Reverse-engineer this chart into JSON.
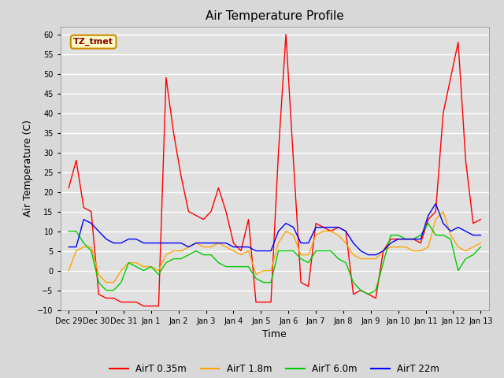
{
  "title": "Air Temperature Profile",
  "xlabel": "Time",
  "ylabel": "Air Temperature (C)",
  "ylim": [
    -10,
    62
  ],
  "yticks": [
    -10,
    -5,
    0,
    5,
    10,
    15,
    20,
    25,
    30,
    35,
    40,
    45,
    50,
    55,
    60
  ],
  "fig_facecolor": "#d8d8d8",
  "plot_bg_color": "#e0e0e0",
  "grid_color": "#ffffff",
  "annotation_text": "TZ_tmet",
  "annotation_facecolor": "#ffffcc",
  "annotation_edgecolor": "#cc8800",
  "annotation_textcolor": "#880000",
  "colors": {
    "AirT 0.35m": "#ff0000",
    "AirT 1.8m": "#ffa500",
    "AirT 6.0m": "#00cc00",
    "AirT 22m": "#0000ff"
  },
  "linewidth": 1.0,
  "x_labels": [
    "Dec 29",
    "Dec 30",
    "Dec 31",
    "Jan 1",
    "Jan 2",
    "Jan 3",
    "Jan 4",
    "Jan 5",
    "Jan 6",
    "Jan 7",
    "Jan 8",
    "Jan 9",
    "Jan 10",
    "Jan 11",
    "Jan 12",
    "Jan 13"
  ],
  "series": {
    "AirT 0.35m": [
      21,
      28,
      16,
      15,
      -6,
      -7,
      -7,
      -8,
      -8,
      -8,
      -9,
      -9,
      -9,
      49,
      35,
      24,
      15,
      14,
      13,
      15,
      21,
      15,
      7,
      5,
      13,
      -8,
      -8,
      -8,
      30,
      60,
      28,
      -3,
      -4,
      12,
      11,
      10,
      11,
      10,
      -6,
      -5,
      -6,
      -7,
      5,
      8,
      8,
      8,
      8,
      7,
      13,
      15,
      40,
      49,
      58,
      28,
      12,
      13
    ],
    "AirT 1.8m": [
      0,
      5,
      6,
      6,
      -1,
      -3,
      -3,
      0,
      2,
      2,
      1,
      1,
      0,
      4,
      5,
      5,
      6,
      7,
      6,
      6,
      7,
      6,
      5,
      4,
      5,
      -1,
      0,
      0,
      7,
      10,
      9,
      4,
      4,
      9,
      10,
      10,
      9,
      7,
      4,
      3,
      3,
      3,
      5,
      6,
      6,
      6,
      5,
      5,
      6,
      13,
      15,
      9,
      6,
      5,
      6,
      7
    ],
    "AirT 6.0m": [
      10,
      10,
      7,
      5,
      -3,
      -5,
      -5,
      -3,
      2,
      1,
      0,
      1,
      -1,
      2,
      3,
      3,
      4,
      5,
      4,
      4,
      2,
      1,
      1,
      1,
      1,
      -2,
      -3,
      -3,
      5,
      5,
      5,
      3,
      2,
      5,
      5,
      5,
      3,
      2,
      -3,
      -5,
      -6,
      -5,
      2,
      9,
      9,
      8,
      8,
      9,
      12,
      9,
      9,
      8,
      0,
      3,
      4,
      6
    ],
    "AirT 22m": [
      6,
      6,
      13,
      12,
      10,
      8,
      7,
      7,
      8,
      8,
      7,
      7,
      7,
      7,
      7,
      7,
      6,
      7,
      7,
      7,
      7,
      7,
      6,
      6,
      6,
      5,
      5,
      5,
      10,
      12,
      11,
      7,
      7,
      11,
      11,
      11,
      11,
      10,
      7,
      5,
      4,
      4,
      5,
      7,
      8,
      8,
      8,
      8,
      14,
      17,
      12,
      10,
      11,
      10,
      9,
      9
    ]
  }
}
